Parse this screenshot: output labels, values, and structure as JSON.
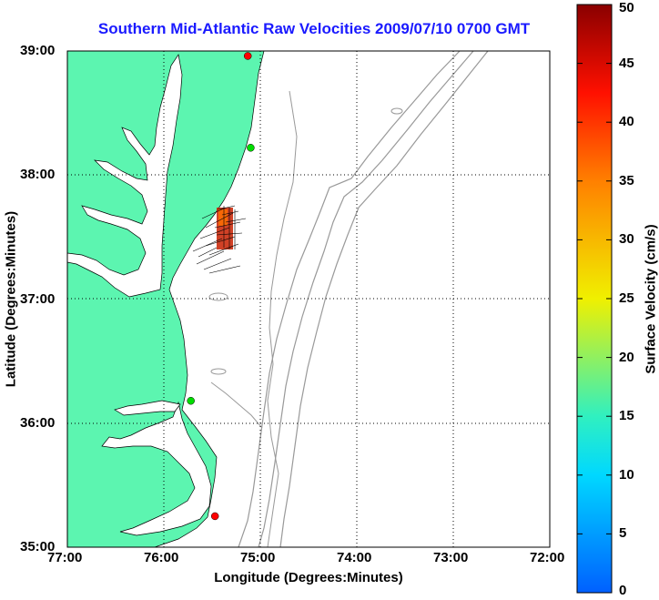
{
  "title": "Southern Mid-Atlantic Raw Velocities 2009/07/10 0700 GMT",
  "xlabel": "Longitude (Degrees:Minutes)",
  "ylabel": "Latitude (Degrees:Minutes)",
  "colorbar_label": "Surface Velocity (cm/s)",
  "map": {
    "lon_range": [
      -77,
      -72
    ],
    "lat_range": [
      35,
      39
    ],
    "x_ticks": [
      {
        "value": -77,
        "label": "77:00"
      },
      {
        "value": -76,
        "label": "76:00"
      },
      {
        "value": -75,
        "label": "75:00"
      },
      {
        "value": -74,
        "label": "74:00"
      },
      {
        "value": -73,
        "label": "73:00"
      },
      {
        "value": -72,
        "label": "72:00"
      }
    ],
    "y_ticks": [
      {
        "value": 39,
        "label": "39:00"
      },
      {
        "value": 38,
        "label": "38:00"
      },
      {
        "value": 37,
        "label": "37:00"
      },
      {
        "value": 36,
        "label": "36:00"
      },
      {
        "value": 35,
        "label": "35:00"
      }
    ],
    "grid": "dotted",
    "land_color": "#5cf5b0",
    "stations": [
      {
        "lon": -75.13,
        "lat": 38.96,
        "color": "#ff0000"
      },
      {
        "lon": -75.1,
        "lat": 38.22,
        "color": "#00dd00"
      },
      {
        "lon": -75.72,
        "lat": 36.18,
        "color": "#00dd00"
      },
      {
        "lon": -75.47,
        "lat": 35.25,
        "color": "#ff0000"
      }
    ]
  },
  "colorbar": {
    "min": 0,
    "max": 50,
    "ticks": [
      "0",
      "5",
      "10",
      "15",
      "20",
      "25",
      "30",
      "35",
      "40",
      "45",
      "50"
    ]
  }
}
